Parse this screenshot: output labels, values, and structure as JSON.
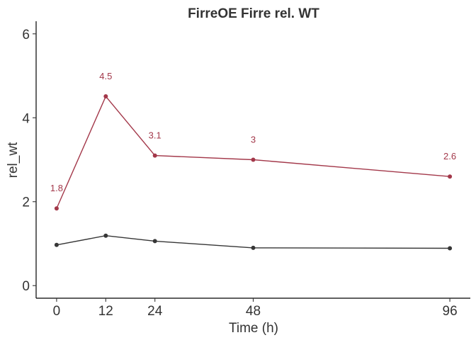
{
  "chart_data": {
    "type": "line",
    "title": "FirreOE Firre rel. WT",
    "xlabel": "Time (h)",
    "ylabel": "rel_wt",
    "x": [
      0,
      12,
      24,
      48,
      96
    ],
    "x_ticks": [
      "0",
      "12",
      "24",
      "48",
      "96"
    ],
    "y_ticks": [
      "0",
      "2",
      "4",
      "6"
    ],
    "xlim": [
      -5,
      101
    ],
    "ylim": [
      -0.3,
      6.3
    ],
    "grid": false,
    "series": [
      {
        "color": "#a3384a",
        "values": [
          1.84,
          4.51,
          3.1,
          3.0,
          2.6
        ],
        "labels": [
          "1.8",
          "4.5",
          "3.1",
          "3",
          "2.6"
        ]
      },
      {
        "color": "#363636",
        "values": [
          0.97,
          1.19,
          1.06,
          0.9,
          0.89
        ]
      }
    ]
  }
}
